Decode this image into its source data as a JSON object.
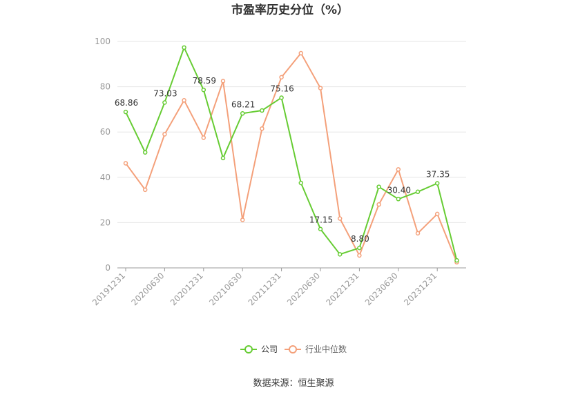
{
  "chart_data": {
    "type": "line",
    "title": "市盈率历史分位（%）",
    "ylim": [
      0,
      100
    ],
    "yticks": [
      0,
      20,
      40,
      60,
      80,
      100
    ],
    "x_tick_labels": [
      "20191231",
      "20200630",
      "20201231",
      "20210630",
      "20211231",
      "20220630",
      "20221231",
      "20230630",
      "20231231"
    ],
    "series": [
      {
        "name": "公司",
        "color": "#66cc33",
        "values": [
          68.86,
          51.0,
          73.03,
          97.3,
          78.59,
          48.5,
          68.21,
          69.5,
          75.16,
          37.5,
          17.15,
          6.0,
          8.8,
          35.8,
          30.4,
          33.6,
          37.35,
          3.3
        ],
        "labels": {
          "0": "68.86",
          "2": "73.03",
          "4": "78.59",
          "6": "68.21",
          "8": "75.16",
          "10": "17.15",
          "12": "8.80",
          "14": "30.40",
          "16": "37.35"
        }
      },
      {
        "name": "行业中位数",
        "color": "#f4a07a",
        "values": [
          46.2,
          34.5,
          59.0,
          74.0,
          57.5,
          82.5,
          21.2,
          61.5,
          84.2,
          94.8,
          79.4,
          21.8,
          5.5,
          28.0,
          43.5,
          15.3,
          23.8,
          2.5
        ]
      }
    ],
    "legend_position": "bottom"
  },
  "footer": {
    "source": "数据来源：恒生聚源"
  }
}
